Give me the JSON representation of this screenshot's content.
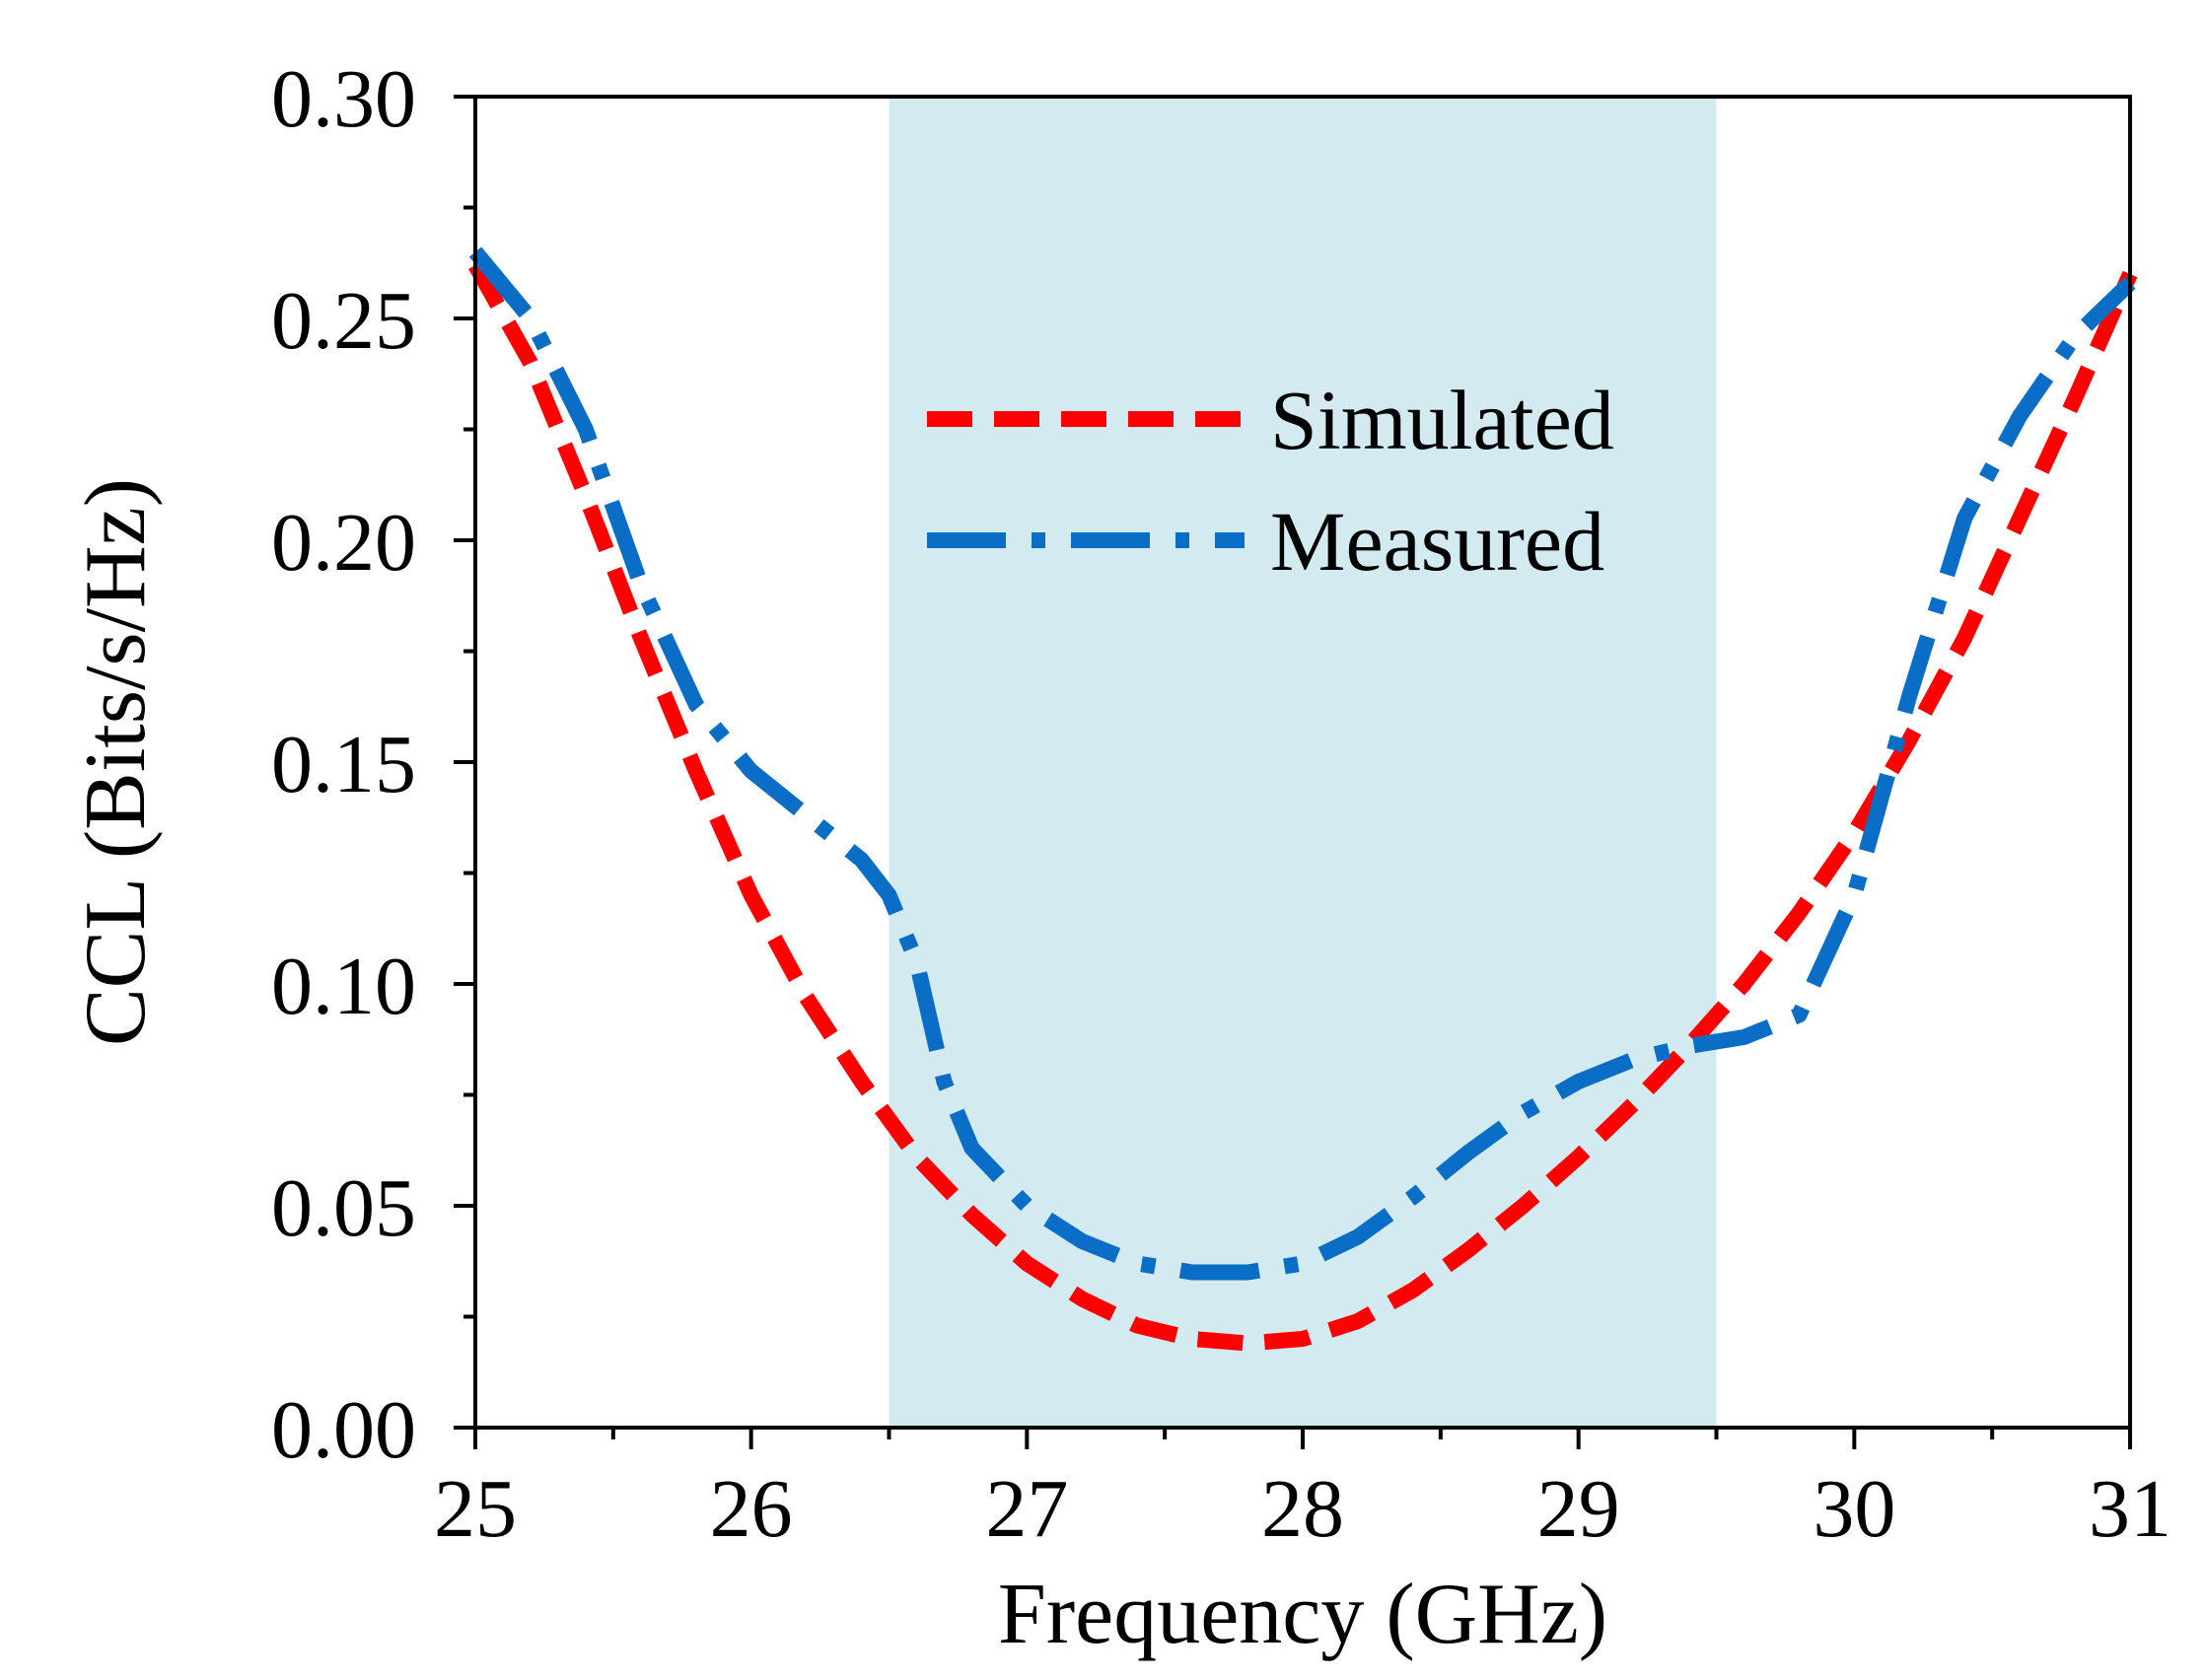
{
  "chart_data": {
    "type": "line",
    "title": "",
    "xlabel": "Frequency (GHz)",
    "ylabel": "CCL (Bits/s/Hz)",
    "xlim": [
      25,
      31
    ],
    "ylim": [
      0,
      0.3
    ],
    "x_ticks": [
      25,
      26,
      27,
      28,
      29,
      30,
      31
    ],
    "x_tick_labels": [
      "25",
      "26",
      "27",
      "28",
      "29",
      "30",
      "31"
    ],
    "y_ticks": [
      0,
      0.05,
      0.1,
      0.15,
      0.2,
      0.25,
      0.3
    ],
    "y_tick_labels": [
      "0.00",
      "0.05",
      "0.10",
      "0.15",
      "0.20",
      "0.25",
      "0.30"
    ],
    "x_minor_ticks": [
      25.5,
      26.5,
      27.5,
      28.5,
      29.5,
      30.5
    ],
    "y_minor_ticks": [
      0.025,
      0.075,
      0.125,
      0.175,
      0.225,
      0.275
    ],
    "grid": false,
    "highlight_band": {
      "x_start": 26.5,
      "x_end": 29.5,
      "color": "#d2eaf0"
    },
    "legend_position": "top-center",
    "series": [
      {
        "name": "Simulated",
        "color": "#ff0000",
        "style": "dashed",
        "x": [
          25.0,
          25.2,
          25.4,
          25.6,
          25.8,
          26.0,
          26.2,
          26.4,
          26.6,
          26.8,
          27.0,
          27.2,
          27.4,
          27.6,
          27.8,
          28.0,
          28.2,
          28.4,
          28.6,
          28.8,
          29.0,
          29.2,
          29.4,
          29.6,
          29.8,
          30.0,
          30.2,
          30.4,
          30.6,
          30.8,
          31.0
        ],
        "values": [
          0.262,
          0.24,
          0.21,
          0.178,
          0.148,
          0.12,
          0.097,
          0.078,
          0.061,
          0.048,
          0.037,
          0.029,
          0.023,
          0.02,
          0.019,
          0.02,
          0.024,
          0.031,
          0.04,
          0.05,
          0.061,
          0.073,
          0.086,
          0.1,
          0.116,
          0.134,
          0.155,
          0.178,
          0.205,
          0.232,
          0.26
        ]
      },
      {
        "name": "Measured",
        "color": "#0a6ec6",
        "style": "dash-dot",
        "x": [
          25.0,
          25.2,
          25.4,
          25.6,
          25.8,
          26.0,
          26.2,
          26.4,
          26.5,
          26.6,
          26.7,
          26.8,
          27.0,
          27.2,
          27.4,
          27.6,
          27.8,
          28.0,
          28.2,
          28.4,
          28.6,
          28.8,
          29.0,
          29.2,
          29.4,
          29.6,
          29.8,
          30.0,
          30.2,
          30.4,
          30.6,
          30.8,
          31.0
        ],
        "values": [
          0.265,
          0.25,
          0.225,
          0.19,
          0.163,
          0.148,
          0.138,
          0.128,
          0.12,
          0.105,
          0.078,
          0.063,
          0.05,
          0.042,
          0.037,
          0.035,
          0.035,
          0.037,
          0.043,
          0.052,
          0.062,
          0.071,
          0.078,
          0.083,
          0.086,
          0.088,
          0.093,
          0.12,
          0.165,
          0.205,
          0.228,
          0.246,
          0.258
        ]
      }
    ]
  }
}
